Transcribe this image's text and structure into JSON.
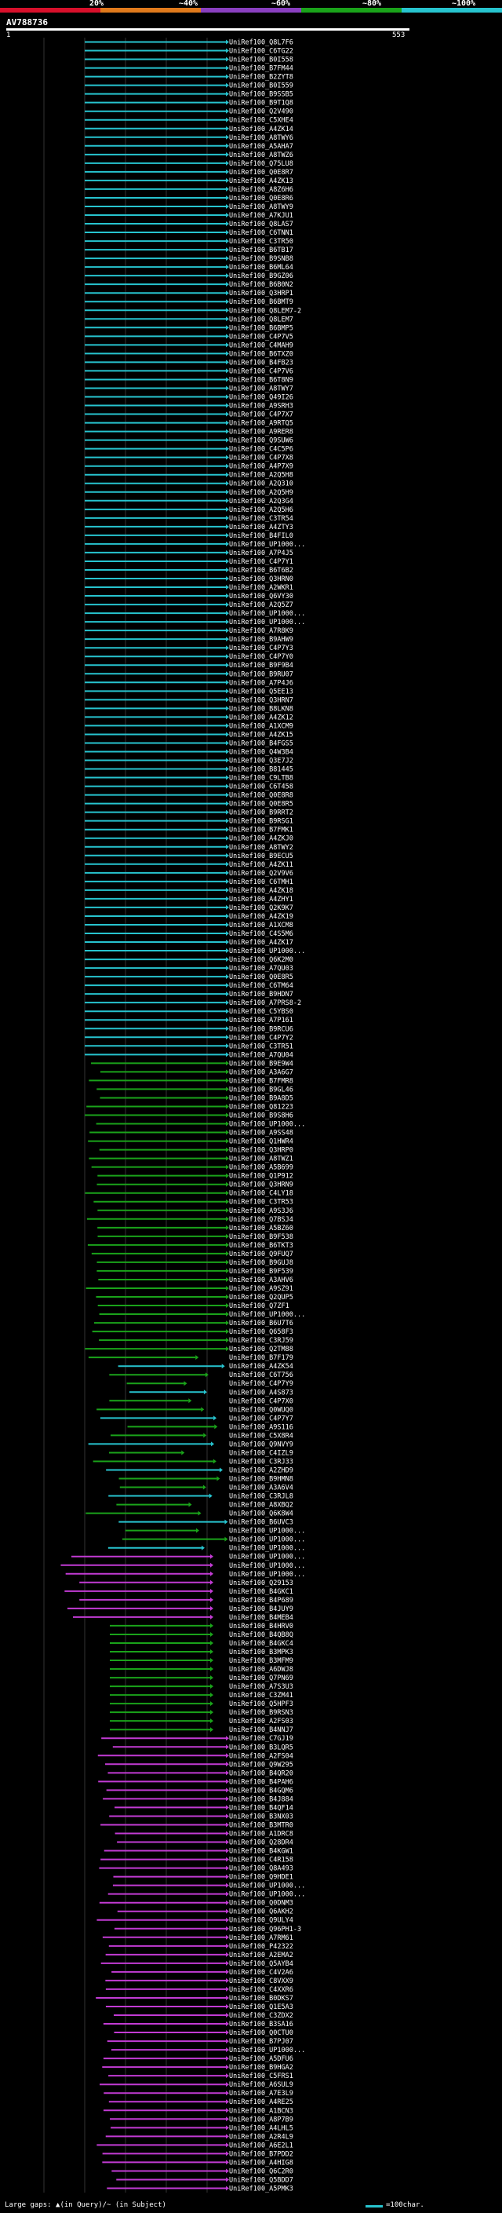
{
  "legend": {
    "labels": [
      "20%",
      "~40%",
      "~60%",
      "~80%",
      "~100%"
    ],
    "colors": [
      "#d8102b",
      "#e07a1c",
      "#8a3fc0",
      "#1aa31a",
      "#27c4cf"
    ]
  },
  "query": {
    "title": "AV788736",
    "start": "1",
    "end": "553"
  },
  "footer": {
    "left": "Large gaps: ▲(in Query)/~ (in Subject)",
    "right": "=100char."
  },
  "hits": [
    "UniRef100_Q8L7F6",
    "UniRef100_C6TG22",
    "UniRef100_B0I558",
    "UniRef100_B7FM44",
    "UniRef100_B2ZYT8",
    "UniRef100_B0I559",
    "UniRef100_B9SSB5",
    "UniRef100_B9T1Q8",
    "UniRef100_Q2V490",
    "UniRef100_C5XHE4",
    "UniRef100_A4ZK14",
    "UniRef100_A8TWY6",
    "UniRef100_A5AHA7",
    "UniRef100_A8TWZ6",
    "UniRef100_Q75LU8",
    "UniRef100_Q0E8R7",
    "UniRef100_A4ZK13",
    "UniRef100_A8Z6H6",
    "UniRef100_Q0E8R6",
    "UniRef100_A8TWY9",
    "UniRef100_A7KJU1",
    "UniRef100_Q8LAS7",
    "UniRef100_C6TNN1",
    "UniRef100_C3TR50",
    "UniRef100_B6TB17",
    "UniRef100_B9SNB8",
    "UniRef100_B6ML64",
    "UniRef100_B9GZ06",
    "UniRef100_B6B0N2",
    "UniRef100_Q3HRP1",
    "UniRef100_B6BMT9",
    "UniRef100_Q8LEM7-2",
    "UniRef100_Q8LEM7",
    "UniRef100_B6BMP5",
    "UniRef100_C4P7V5",
    "UniRef100_C4MAH9",
    "UniRef100_B6TXZ0",
    "UniRef100_B4FB23",
    "UniRef100_C4P7V6",
    "UniRef100_B6T8N9",
    "UniRef100_A8TWY7",
    "UniRef100_Q49I26",
    "UniRef100_A9SRH3",
    "UniRef100_C4P7X7",
    "UniRef100_A9RTQ5",
    "UniRef100_A9RER8",
    "UniRef100_Q9SUW6",
    "UniRef100_C4C5P6",
    "UniRef100_C4P7X8",
    "UniRef100_A4P7X9",
    "UniRef100_A2Q5H8",
    "UniRef100_A2Q310",
    "UniRef100_A2Q5H9",
    "UniRef100_A2Q3G4",
    "UniRef100_A2Q5H6",
    "UniRef100_C3TR54",
    "UniRef100_A4ZTY3",
    "UniRef100_B4FIL0",
    "UniRef100_UP1000...",
    "UniRef100_A7P4J5",
    "UniRef100_C4P7Y1",
    "UniRef100_B6T6B2",
    "UniRef100_Q3HRN0",
    "UniRef100_A2WKR1",
    "UniRef100_Q6VY30",
    "UniRef100_A2Q5Z7",
    "UniRef100_UP1000...",
    "UniRef100_UP1000...",
    "UniRef100_A7R8K9",
    "UniRef100_B9AHW9",
    "UniRef100_C4P7Y3",
    "UniRef100_C4P7Y0",
    "UniRef100_B9F9B4",
    "UniRef100_B9RU07",
    "UniRef100_A7P4J6",
    "UniRef100_Q5EE13",
    "UniRef100_Q3HRN7",
    "UniRef100_B8LKN8",
    "UniRef100_A4ZK12",
    "UniRef100_A1XCM9",
    "UniRef100_A4ZK15",
    "UniRef100_B4FGS5",
    "UniRef100_Q4W3B4",
    "UniRef100_Q3E7J2",
    "UniRef100_B81445",
    "UniRef100_C9LTB8",
    "UniRef100_C6T458",
    "UniRef100_Q0E8R8",
    "UniRef100_Q0E8R5",
    "UniRef100_B9RRT2",
    "UniRef100_B9RSG1",
    "UniRef100_B7FMK1",
    "UniRef100_A4ZKJ0",
    "UniRef100_A8TWY2",
    "UniRef100_B9ECU5",
    "UniRef100_A4ZK11",
    "UniRef100_Q2V9V6",
    "UniRef100_C6TMH1",
    "UniRef100_A4ZK18",
    "UniRef100_A4ZHY1",
    "UniRef100_Q2K9K7",
    "UniRef100_A4ZK19",
    "UniRef100_A1XCM8",
    "UniRef100_C4S5M6",
    "UniRef100_A4ZK17",
    "UniRef100_UP1000...",
    "UniRef100_Q6K2M0",
    "UniRef100_A7QU03",
    "UniRef100_Q0E8R5",
    "UniRef100_C6TM64",
    "UniRef100_B9HDN7",
    "UniRef100_A7PRS8-2",
    "UniRef100_C5YBS0",
    "UniRef100_A7P161",
    "UniRef100_B9RCU6",
    "UniRef100_C4P7Y2",
    "UniRef100_C3TR51",
    "UniRef100_A7QU04",
    "UniRef100_B9E9W4",
    "UniRef100_A3A6G7",
    "UniRef100_B7FMR8",
    "UniRef100_B9GL46",
    "UniRef100_B9A8D5",
    "UniRef100_Q81223",
    "UniRef100_B9S8H6",
    "UniRef100_UP1000...",
    "UniRef100_A9SS48",
    "UniRef100_Q1HWR4",
    "UniRef100_Q3HRP0",
    "UniRef100_A8TWZ1",
    "UniRef100_A5B699",
    "UniRef100_Q1P912",
    "UniRef100_Q3HRN9",
    "UniRef100_C4LY18",
    "UniRef100_C3TR53",
    "UniRef100_A9S3J6",
    "UniRef100_Q7BSJ4",
    "UniRef100_A5BZ60",
    "UniRef100_B9F538",
    "UniRef100_B6TKT3",
    "UniRef100_Q9FUQ7",
    "UniRef100_B9GUJ8",
    "UniRef100_B9F539",
    "UniRef100_A3AHV6",
    "UniRef100_A9SZ91",
    "UniRef100_Q2QUP5",
    "UniRef100_Q7ZF1",
    "UniRef100_UP1000...",
    "UniRef100_B6U7T6",
    "UniRef100_Q658F3",
    "UniRef100_C3RJ59",
    "UniRef100_Q2TM88",
    "UniRef100_B7F179",
    "UniRef100_A4ZK54",
    "UniRef100_C6T756",
    "UniRef100_C4P7Y9",
    "UniRef100_A4S873",
    "UniRef100_C4P7X0",
    "UniRef100_Q0WUQ0",
    "UniRef100_C4P7Y7",
    "UniRef100_A9S116",
    "UniRef100_C5X8R4",
    "UniRef100_Q9NVY9",
    "UniRef100_C4IZL9",
    "UniRef100_C3RJ33",
    "UniRef100_A2ZHD9",
    "UniRef100_B9HMN8",
    "UniRef100_A3A6V4",
    "UniRef100_C3RJL8",
    "UniRef100_A8XBQ2",
    "UniRef100_Q6K8W4",
    "UniRef100_B6UVC3",
    "UniRef100_UP1000...",
    "UniRef100_UP1000...",
    "UniRef100_UP1000...",
    "UniRef100_UP1000...",
    "UniRef100_UP1000...",
    "UniRef100_UP1000...",
    "UniRef100_Q29153",
    "UniRef100_B4GKC1",
    "UniRef100_B4P689",
    "UniRef100_B4JUY9",
    "UniRef100_B4MEB4",
    "UniRef100_B4HRV0",
    "UniRef100_B4QB8Q",
    "UniRef100_B4GKC4",
    "UniRef100_B3MPK3",
    "UniRef100_B3MFM9",
    "UniRef100_A6DWJ8",
    "UniRef100_Q7PN69",
    "UniRef100_A7S3U3",
    "UniRef100_C3ZM41",
    "UniRef100_Q5HPF3",
    "UniRef100_B9RSN3",
    "UniRef100_A2FS03",
    "UniRef100_B4NNJ7",
    "UniRef100_C7GJ19",
    "UniRef100_B3LQR5",
    "UniRef100_A2FS04",
    "UniRef100_Q9W295",
    "UniRef100_B4QR20",
    "UniRef100_B4PAH6",
    "UniRef100_B4GQM6",
    "UniRef100_B4J884",
    "UniRef100_B4QF14",
    "UniRef100_B3NX03",
    "UniRef100_B3MTR0",
    "UniRef100_A1DRC8",
    "UniRef100_Q28DR4",
    "UniRef100_B4KGW1",
    "UniRef100_C4R158",
    "UniRef100_Q8A493",
    "UniRef100_Q9HDE1",
    "UniRef100_UP1000...",
    "UniRef100_UP1000...",
    "UniRef100_Q0DNM3",
    "UniRef100_Q6AKH2",
    "UniRef100_Q9ULY4",
    "UniRef100_Q96PH1-3",
    "UniRef100_A7RM61",
    "UniRef100_P42322",
    "UniRef100_A2EMA2",
    "UniRef100_Q5AYB4",
    "UniRef100_C4V2A6",
    "UniRef100_C8VXX9",
    "UniRef100_C4XXR6",
    "UniRef100_B0DKS7",
    "UniRef100_Q1E5A3",
    "UniRef100_C3ZDX2",
    "UniRef100_B3SA16",
    "UniRef100_Q0CTU0",
    "UniRef100_B7PJ07",
    "UniRef100_UP1000...",
    "UniRef100_A5DFU6",
    "UniRef100_B9HGA2",
    "UniRef100_C5FRS1",
    "UniRef100_A6SUL9",
    "UniRef100_A7E3L9",
    "UniRef100_A4RE25",
    "UniRef100_A1BCN3",
    "UniRef100_A8P7B9",
    "UniRef100_A4LHL5",
    "UniRef100_A2R4L9",
    "UniRef100_A6E2L1",
    "UniRef100_B7PDD2",
    "UniRef100_A4HIG8",
    "UniRef100_Q6C2R0",
    "UniRef100_Q5BDD7",
    "UniRef100_A5PMK3"
  ],
  "chart_data": {
    "type": "other",
    "query_range": [
      1,
      553
    ]
  }
}
